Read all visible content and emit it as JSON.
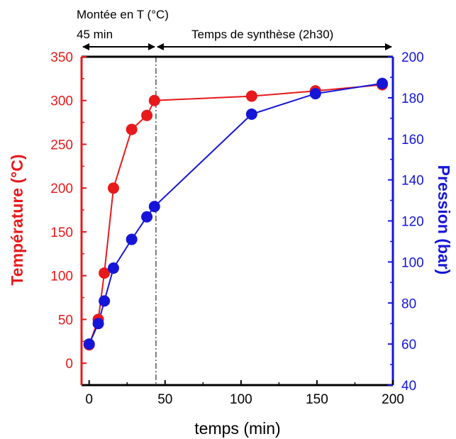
{
  "chart_data": {
    "type": "line",
    "xlabel": "temps (min)",
    "ylabel_left": "Température (°C)",
    "ylabel_right": "Pression (bar)",
    "xlim": [
      -5,
      200
    ],
    "ylim_left": [
      -25,
      350
    ],
    "ylim_right": [
      40,
      200
    ],
    "x_ticks": [
      0,
      50,
      100,
      150,
      200
    ],
    "y_left_ticks": [
      0,
      50,
      100,
      150,
      200,
      250,
      300,
      350
    ],
    "y_right_ticks": [
      40,
      60,
      80,
      100,
      120,
      140,
      160,
      180,
      200
    ],
    "grid": false,
    "colors": {
      "temperature": "#e8191a",
      "pression": "#1515d9",
      "axis": "#000000"
    },
    "series": [
      {
        "axis": "left",
        "color": "#e8191a",
        "x": [
          0,
          6,
          10,
          16,
          28,
          38,
          43,
          107,
          149,
          193
        ],
        "values": [
          21,
          50,
          103,
          200,
          267,
          283,
          300,
          305,
          311,
          318
        ]
      },
      {
        "axis": "right",
        "color": "#1515d9",
        "x": [
          0,
          6,
          10,
          16,
          28,
          38,
          43,
          107,
          149,
          193
        ],
        "values": [
          60,
          70,
          81,
          97,
          111,
          122,
          127,
          172,
          182,
          187
        ]
      }
    ],
    "annotations": {
      "divider_x": 44,
      "phase1_label_top": "Montée en T (°C)",
      "phase1_label": "45 min",
      "phase2_label": "Temps de synthèse (2h30)"
    }
  }
}
